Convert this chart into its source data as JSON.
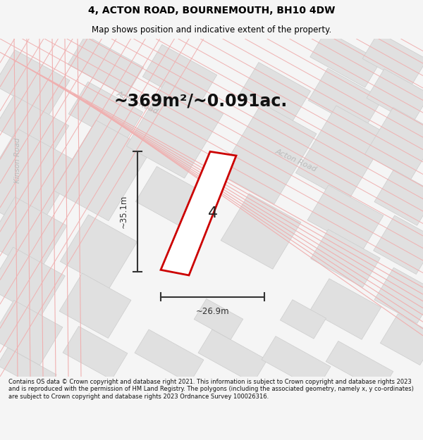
{
  "title": "4, ACTON ROAD, BOURNEMOUTH, BH10 4DW",
  "subtitle": "Map shows position and indicative extent of the property.",
  "area_text": "~369m²/~0.091ac.",
  "dim_width": "~26.9m",
  "dim_height": "~35.1m",
  "property_number": "4",
  "footer": "Contains OS data © Crown copyright and database right 2021. This information is subject to Crown copyright and database rights 2023 and is reproduced with the permission of HM Land Registry. The polygons (including the associated geometry, namely x, y co-ordinates) are subject to Crown copyright and database rights 2023 Ordnance Survey 100026316.",
  "map_bg": "#f8f8f8",
  "building_fill": "#e0e0e0",
  "building_edge": "#cccccc",
  "road_line_color": "#f0b0b0",
  "property_fill": "#ffffff",
  "property_edge": "#cc0000",
  "dim_color": "#333333",
  "road_label_color": "#bbbbbb",
  "title_color": "#000000",
  "footer_color": "#111111",
  "page_bg": "#f5f5f5"
}
